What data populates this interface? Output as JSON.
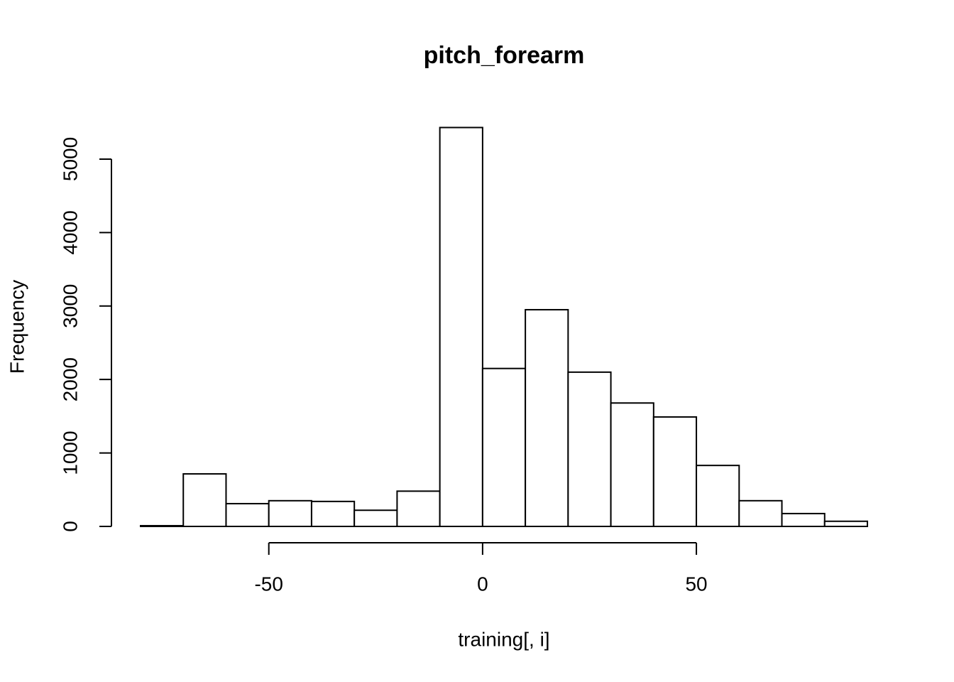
{
  "chart_data": {
    "type": "histogram",
    "title": "pitch_forearm",
    "xlabel": "training[, i]",
    "ylabel": "Frequency",
    "bins": [
      -80,
      -70,
      -60,
      -50,
      -40,
      -30,
      -20,
      -10,
      0,
      10,
      20,
      30,
      40,
      50,
      60,
      70,
      80,
      90
    ],
    "values": [
      10,
      715,
      310,
      350,
      340,
      220,
      480,
      5430,
      2150,
      2950,
      2100,
      1680,
      1490,
      830,
      350,
      175,
      70
    ],
    "color": "#ffffff",
    "xlim": [
      -80,
      90
    ],
    "ylim": [
      0,
      5430
    ],
    "xticks": [
      -50,
      0,
      50
    ],
    "yticks": [
      0,
      1000,
      2000,
      3000,
      4000,
      5000
    ]
  }
}
